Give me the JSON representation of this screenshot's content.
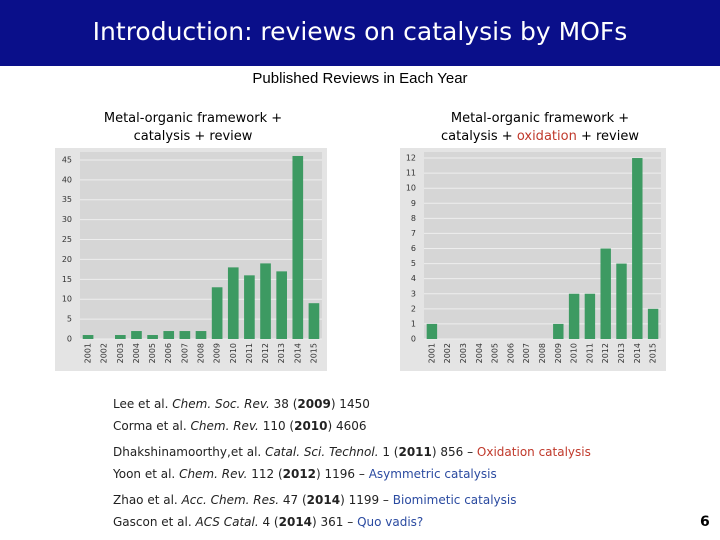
{
  "header": {
    "title": "Introduction: reviews on catalysis by MOFs"
  },
  "subtitle": "Published Reviews in Each Year",
  "chart_data": [
    {
      "type": "bar",
      "title": "Metal-organic framework + catalysis + review",
      "categories": [
        "2001",
        "2002",
        "2003",
        "2004",
        "2005",
        "2006",
        "2007",
        "2008",
        "2009",
        "2010",
        "2011",
        "2012",
        "2013",
        "2014",
        "2015"
      ],
      "values": [
        1,
        0,
        1,
        2,
        1,
        2,
        2,
        2,
        13,
        18,
        16,
        19,
        17,
        46,
        9
      ],
      "color": "#3d9a62",
      "ylim": [
        0,
        47
      ],
      "yticks": [
        0,
        5,
        10,
        15,
        20,
        25,
        30,
        35,
        40,
        45
      ],
      "grid": true
    },
    {
      "type": "bar",
      "title": [
        "Metal-organic framework + catalysis + ",
        "oxidation",
        " + review"
      ],
      "title_highlight_color": "#c0392b",
      "categories": [
        "2001",
        "2002",
        "2003",
        "2004",
        "2005",
        "2006",
        "2007",
        "2008",
        "2009",
        "2010",
        "2011",
        "2012",
        "2013",
        "2014",
        "2015"
      ],
      "values": [
        1,
        0,
        0,
        0,
        0,
        0,
        0,
        0,
        1,
        3,
        3,
        6,
        5,
        12,
        2
      ],
      "color": "#3d9a62",
      "ylim": [
        0,
        12.4
      ],
      "yticks": [
        0,
        1,
        2,
        3,
        4,
        5,
        6,
        7,
        8,
        9,
        10,
        11,
        12
      ],
      "grid": true
    }
  ],
  "references": [
    [
      {
        "text": "Lee et al. "
      },
      {
        "text": "Chem. Soc. Rev.",
        "style": "italic"
      },
      {
        "text": " 38 ("
      },
      {
        "text": "2009",
        "style": "bold"
      },
      {
        "text": ") 1450"
      }
    ],
    [
      {
        "text": "Corma et al. "
      },
      {
        "text": "Chem. Rev.",
        "style": "italic"
      },
      {
        "text": " 110 ("
      },
      {
        "text": "2010",
        "style": "bold"
      },
      {
        "text": ") 4606"
      }
    ],
    [
      {
        "text": "Dhakshinamoorthy,et al. "
      },
      {
        "text": "Catal. Sci. Technol.",
        "style": "italic"
      },
      {
        "text": " 1 ("
      },
      {
        "text": "2011",
        "style": "bold"
      },
      {
        "text": ") 856 – "
      },
      {
        "text": "Oxidation catalysis",
        "style": "red"
      }
    ],
    [
      {
        "text": "Yoon et al. "
      },
      {
        "text": "Chem. Rev.",
        "style": "italic"
      },
      {
        "text": " 112 ("
      },
      {
        "text": "2012",
        "style": "bold"
      },
      {
        "text": ") 1196 – "
      },
      {
        "text": "Asymmetric catalysis",
        "style": "blue"
      }
    ],
    [
      {
        "text": "Zhao et al. "
      },
      {
        "text": "Acc. Chem. Res.",
        "style": "italic"
      },
      {
        "text": " 47 ("
      },
      {
        "text": "2014",
        "style": "bold"
      },
      {
        "text": ") 1199 – "
      },
      {
        "text": "Biomimetic catalysis",
        "style": "blue"
      }
    ],
    [
      {
        "text": "Gascon et al. "
      },
      {
        "text": "ACS Catal.",
        "style": "italic"
      },
      {
        "text": " 4 ("
      },
      {
        "text": "2014",
        "style": "bold"
      },
      {
        "text": ") 361 – "
      },
      {
        "text": "Quo vadis?",
        "style": "blue"
      }
    ]
  ],
  "page_number": "6"
}
